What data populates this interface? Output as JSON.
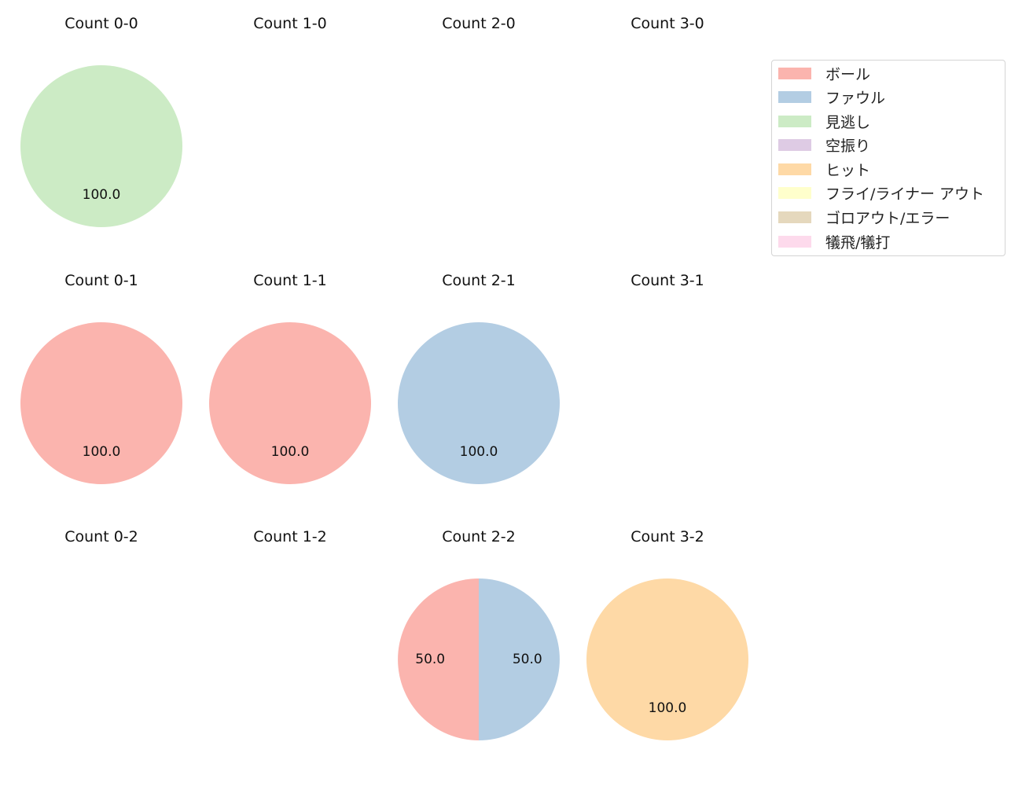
{
  "chart_data": {
    "type": "pie",
    "categories": [
      "ボール",
      "ファウル",
      "見逃し",
      "空振り",
      "ヒット",
      "フライ/ライナー アウト",
      "ゴロアウト/エラー",
      "犠飛/犠打"
    ],
    "colors": [
      "#fbb4ae",
      "#b3cde3",
      "#ccebc5",
      "#decbe4",
      "#fed9a6",
      "#ffffcc",
      "#e5d8bd",
      "#fddaec"
    ],
    "legend_position": "top-right",
    "panels": [
      {
        "title": "Count 0-0",
        "values": [
          0,
          0,
          100,
          0,
          0,
          0,
          0,
          0
        ],
        "labels": [
          "100.0"
        ]
      },
      {
        "title": "Count 1-0",
        "values": [],
        "labels": []
      },
      {
        "title": "Count 2-0",
        "values": [],
        "labels": []
      },
      {
        "title": "Count 3-0",
        "values": [],
        "labels": []
      },
      {
        "title": "Count 0-1",
        "values": [
          100,
          0,
          0,
          0,
          0,
          0,
          0,
          0
        ],
        "labels": [
          "100.0"
        ]
      },
      {
        "title": "Count 1-1",
        "values": [
          100,
          0,
          0,
          0,
          0,
          0,
          0,
          0
        ],
        "labels": [
          "100.0"
        ]
      },
      {
        "title": "Count 2-1",
        "values": [
          0,
          100,
          0,
          0,
          0,
          0,
          0,
          0
        ],
        "labels": [
          "100.0"
        ]
      },
      {
        "title": "Count 3-1",
        "values": [],
        "labels": []
      },
      {
        "title": "Count 0-2",
        "values": [],
        "labels": []
      },
      {
        "title": "Count 1-2",
        "values": [],
        "labels": []
      },
      {
        "title": "Count 2-2",
        "values": [
          50,
          50,
          0,
          0,
          0,
          0,
          0,
          0
        ],
        "labels": [
          "50.0",
          "50.0"
        ]
      },
      {
        "title": "Count 3-2",
        "values": [
          0,
          0,
          0,
          0,
          100,
          0,
          0,
          0
        ],
        "labels": [
          "100.0"
        ]
      }
    ]
  }
}
